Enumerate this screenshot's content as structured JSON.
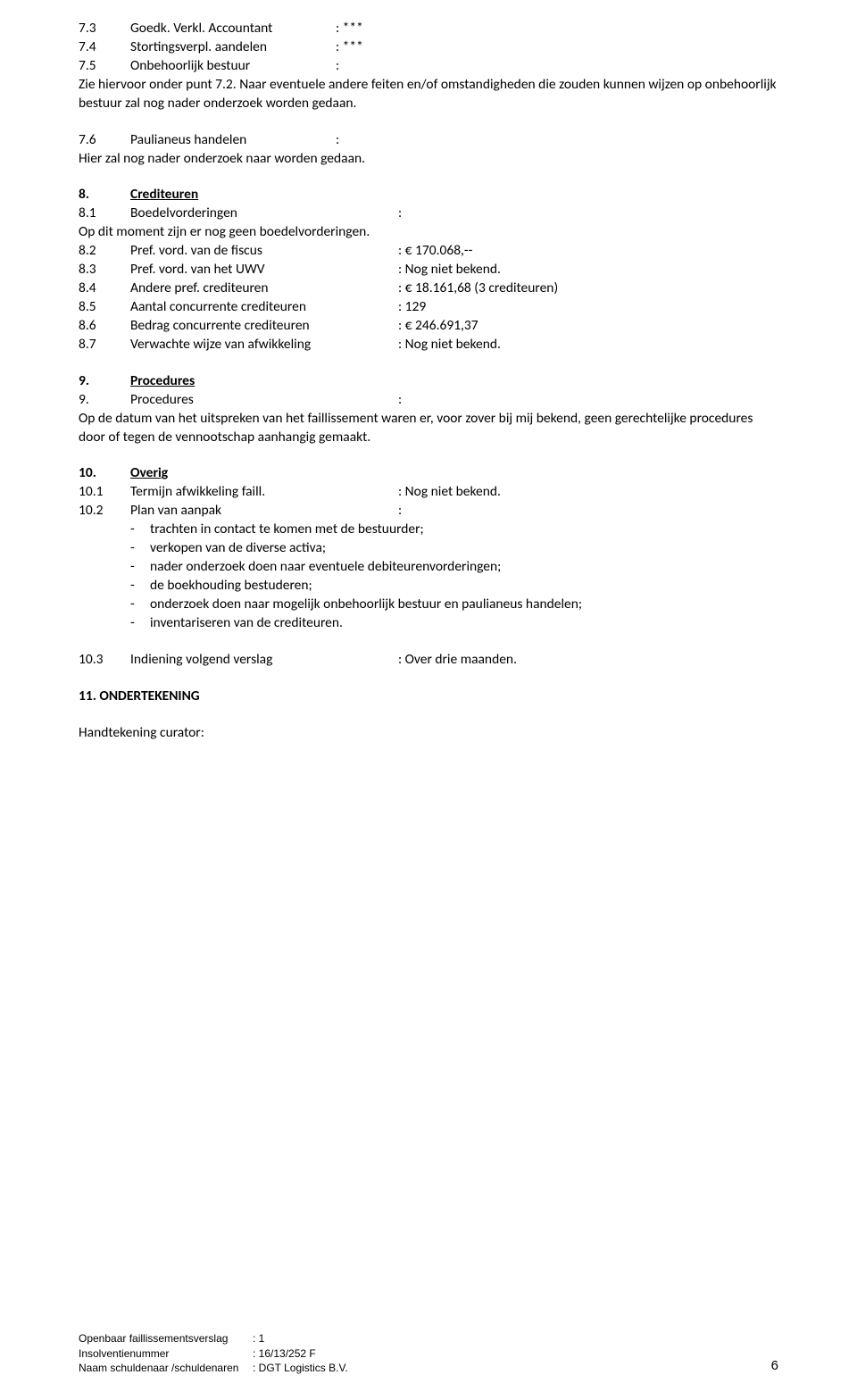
{
  "s7": {
    "r3": {
      "num": "7.3",
      "label": "Goedk. Verkl. Accountant",
      "val": ": ***"
    },
    "r4": {
      "num": "7.4",
      "label": "Stortingsverpl. aandelen",
      "val": ": ***"
    },
    "r5": {
      "num": "7.5",
      "label": "Onbehoorlijk bestuur",
      "val": ":"
    },
    "p5": "Zie hiervoor onder punt 7.2. Naar eventuele andere feiten en/of omstandigheden die zouden kunnen wijzen op onbehoorlijk bestuur zal nog nader onderzoek worden gedaan.",
    "r6": {
      "num": "7.6",
      "label": "Paulianeus handelen",
      "val": ":"
    },
    "p6": "Hier zal nog nader onderzoek naar worden gedaan."
  },
  "s8": {
    "head": {
      "num": "8.",
      "label": "Crediteuren"
    },
    "r1": {
      "num": "8.1",
      "label": "Boedelvorderingen",
      "val": ":"
    },
    "p1": "Op dit moment zijn er nog geen boedelvorderingen.",
    "r2": {
      "num": "8.2",
      "label": "Pref. vord. van de fiscus",
      "val": ": € 170.068,--"
    },
    "r3": {
      "num": "8.3",
      "label": "Pref. vord. van het UWV",
      "val": ": Nog niet bekend."
    },
    "r4": {
      "num": "8.4",
      "label": "Andere pref. crediteuren",
      "val": ": € 18.161,68 (3 crediteuren)"
    },
    "r5": {
      "num": "8.5",
      "label": "Aantal concurrente crediteuren",
      "val": ": 129"
    },
    "r6": {
      "num": "8.6",
      "label": "Bedrag concurrente crediteuren",
      "val": ": € 246.691,37"
    },
    "r7": {
      "num": "8.7",
      "label": "Verwachte wijze van afwikkeling",
      "val": ": Nog niet bekend."
    }
  },
  "s9": {
    "head": {
      "num": "9.",
      "label": "Procedures"
    },
    "r1": {
      "num": "9.",
      "label": "Procedures",
      "val": ":"
    },
    "p1": "Op de datum van het uitspreken van het faillissement waren er, voor zover bij mij bekend, geen gerechtelijke procedures door of tegen de vennootschap aanhangig gemaakt."
  },
  "s10": {
    "head": {
      "num": "10.",
      "label": "Overig"
    },
    "r1": {
      "num": "10.1",
      "label": "Termijn afwikkeling faill.",
      "val": ": Nog niet bekend."
    },
    "r2": {
      "num": "10.2",
      "label": "Plan van aanpak",
      "val": ":"
    },
    "b1": "trachten in contact te komen met de bestuurder;",
    "b2": "verkopen van de diverse activa;",
    "b3": "nader onderzoek doen naar eventuele debiteurenvorderingen;",
    "b4": "de boekhouding bestuderen;",
    "b5": "onderzoek doen naar mogelijk onbehoorlijk bestuur en paulianeus handelen;",
    "b6": "inventariseren van de crediteuren.",
    "r3": {
      "num": "10.3",
      "label": "Indiening volgend verslag",
      "val": ": Over drie maanden."
    }
  },
  "s11": {
    "head": "11. ONDERTEKENING",
    "p1": "Handtekening curator:"
  },
  "footer": {
    "l1": {
      "label": "Openbaar faillissementsverslag",
      "val": ": 1"
    },
    "l2": {
      "label": "Insolventienummer",
      "val": ": 16/13/252 F"
    },
    "l3": {
      "label": "Naam schuldenaar /schuldenaren",
      "val": ": DGT Logistics B.V."
    },
    "page": "6"
  }
}
